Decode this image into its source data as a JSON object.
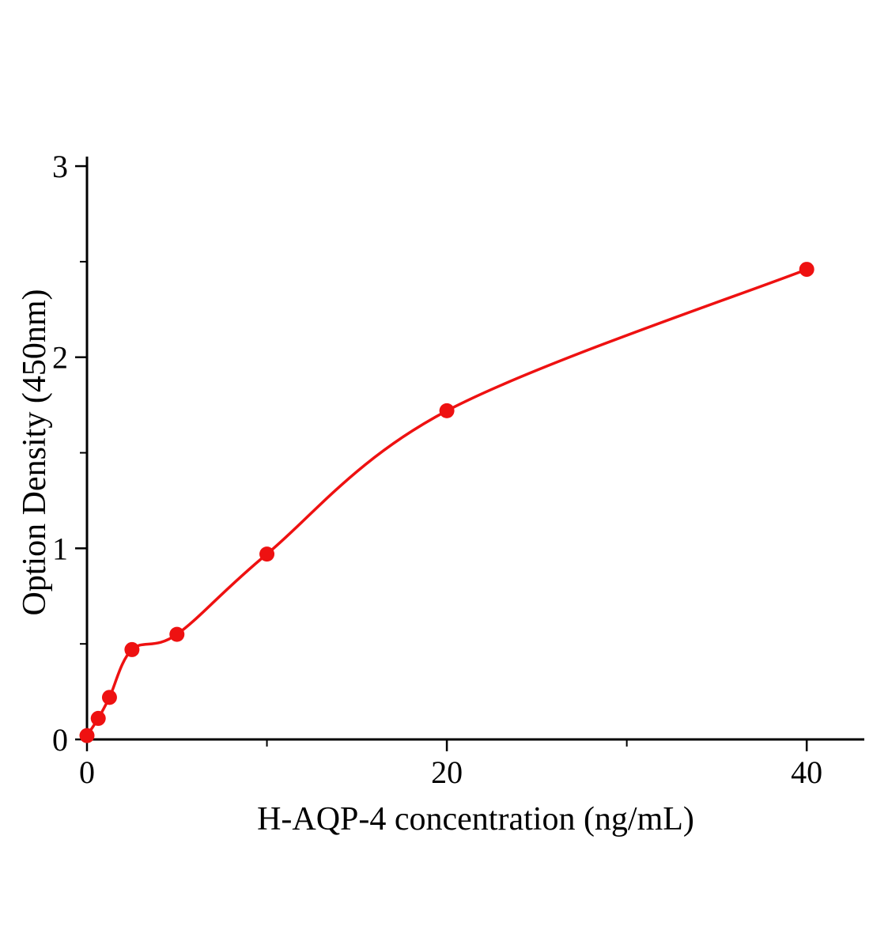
{
  "chart_data": {
    "type": "scatter",
    "title": "",
    "xlabel": "H-AQP-4 concentration (ng/mL)",
    "ylabel": "Option Density (450nm)",
    "x": [
      0,
      0.625,
      1.25,
      2.5,
      5,
      10,
      20,
      40
    ],
    "y": [
      0.02,
      0.11,
      0.22,
      0.47,
      0.55,
      0.97,
      1.72,
      2.46
    ],
    "curve": "smooth saturating fit through data points",
    "xlim": [
      0,
      43.2
    ],
    "ylim": [
      0,
      3.05
    ],
    "x_major_ticks": [
      0,
      20,
      40
    ],
    "x_minor_ticks": [
      10,
      30
    ],
    "y_major_ticks": [
      0,
      1,
      2,
      3
    ],
    "y_minor_ticks": [
      0.5,
      1.5,
      2.5
    ],
    "grid": false,
    "legend": false,
    "color": "#ee1111",
    "axis_color": "#000000",
    "marker": "circle",
    "marker_size": 9.5
  }
}
